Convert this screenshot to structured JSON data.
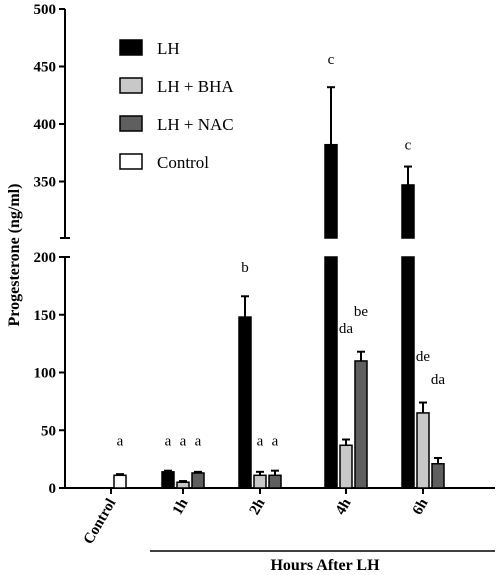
{
  "chart_data": {
    "type": "bar",
    "ylabel": "Progesterone (ng/ml)",
    "xlabel": "Hours After LH",
    "categories": [
      "Control",
      "1h",
      "2h",
      "4h",
      "6h"
    ],
    "y_axis_break": {
      "lower_range": [
        0,
        200
      ],
      "upper_range": [
        300,
        500
      ]
    },
    "lower_ticks": [
      0,
      50,
      100,
      150,
      200
    ],
    "upper_ticks": [
      350,
      400,
      450,
      500
    ],
    "grid": false,
    "legend_position": "top-left",
    "series": [
      {
        "name": "LH",
        "color": "#000000",
        "values": [
          null,
          14,
          148,
          382,
          347
        ],
        "errors": [
          null,
          1,
          18,
          50,
          16
        ]
      },
      {
        "name": "LH + BHA",
        "color": "#c8c8c8",
        "values": [
          null,
          5,
          11,
          37,
          65
        ],
        "errors": [
          null,
          1,
          3,
          5,
          9
        ]
      },
      {
        "name": "LH + NAC",
        "color": "#5f5f5f",
        "values": [
          null,
          13,
          11,
          110,
          21
        ],
        "errors": [
          null,
          1,
          4,
          8,
          5
        ]
      },
      {
        "name": "Control",
        "color": "#ffffff",
        "values": [
          11,
          null,
          null,
          null,
          null
        ],
        "errors": [
          1,
          null,
          null,
          null,
          null
        ]
      }
    ],
    "annotations": [
      {
        "cat": 0,
        "series": 3,
        "text": "a",
        "y": 37
      },
      {
        "cat": 1,
        "series": 0,
        "text": "a",
        "y": 37
      },
      {
        "cat": 1,
        "series": 1,
        "text": "a",
        "y": 37
      },
      {
        "cat": 1,
        "series": 2,
        "text": "a",
        "y": 37
      },
      {
        "cat": 2,
        "series": 0,
        "text": "b",
        "y": 187
      },
      {
        "cat": 2,
        "series": 1,
        "text": "a",
        "y": 37
      },
      {
        "cat": 2,
        "series": 2,
        "text": "a",
        "y": 37
      },
      {
        "cat": 3,
        "series": 0,
        "text": "c",
        "y": 452
      },
      {
        "cat": 3,
        "series": 1,
        "text": "da",
        "y": 134
      },
      {
        "cat": 3,
        "series": 2,
        "text": "be",
        "y": 149
      },
      {
        "cat": 4,
        "series": 0,
        "text": "c",
        "y": 378
      },
      {
        "cat": 4,
        "series": 1,
        "text": "de",
        "y": 110
      },
      {
        "cat": 4,
        "series": 2,
        "text": "da",
        "y": 90
      }
    ]
  }
}
